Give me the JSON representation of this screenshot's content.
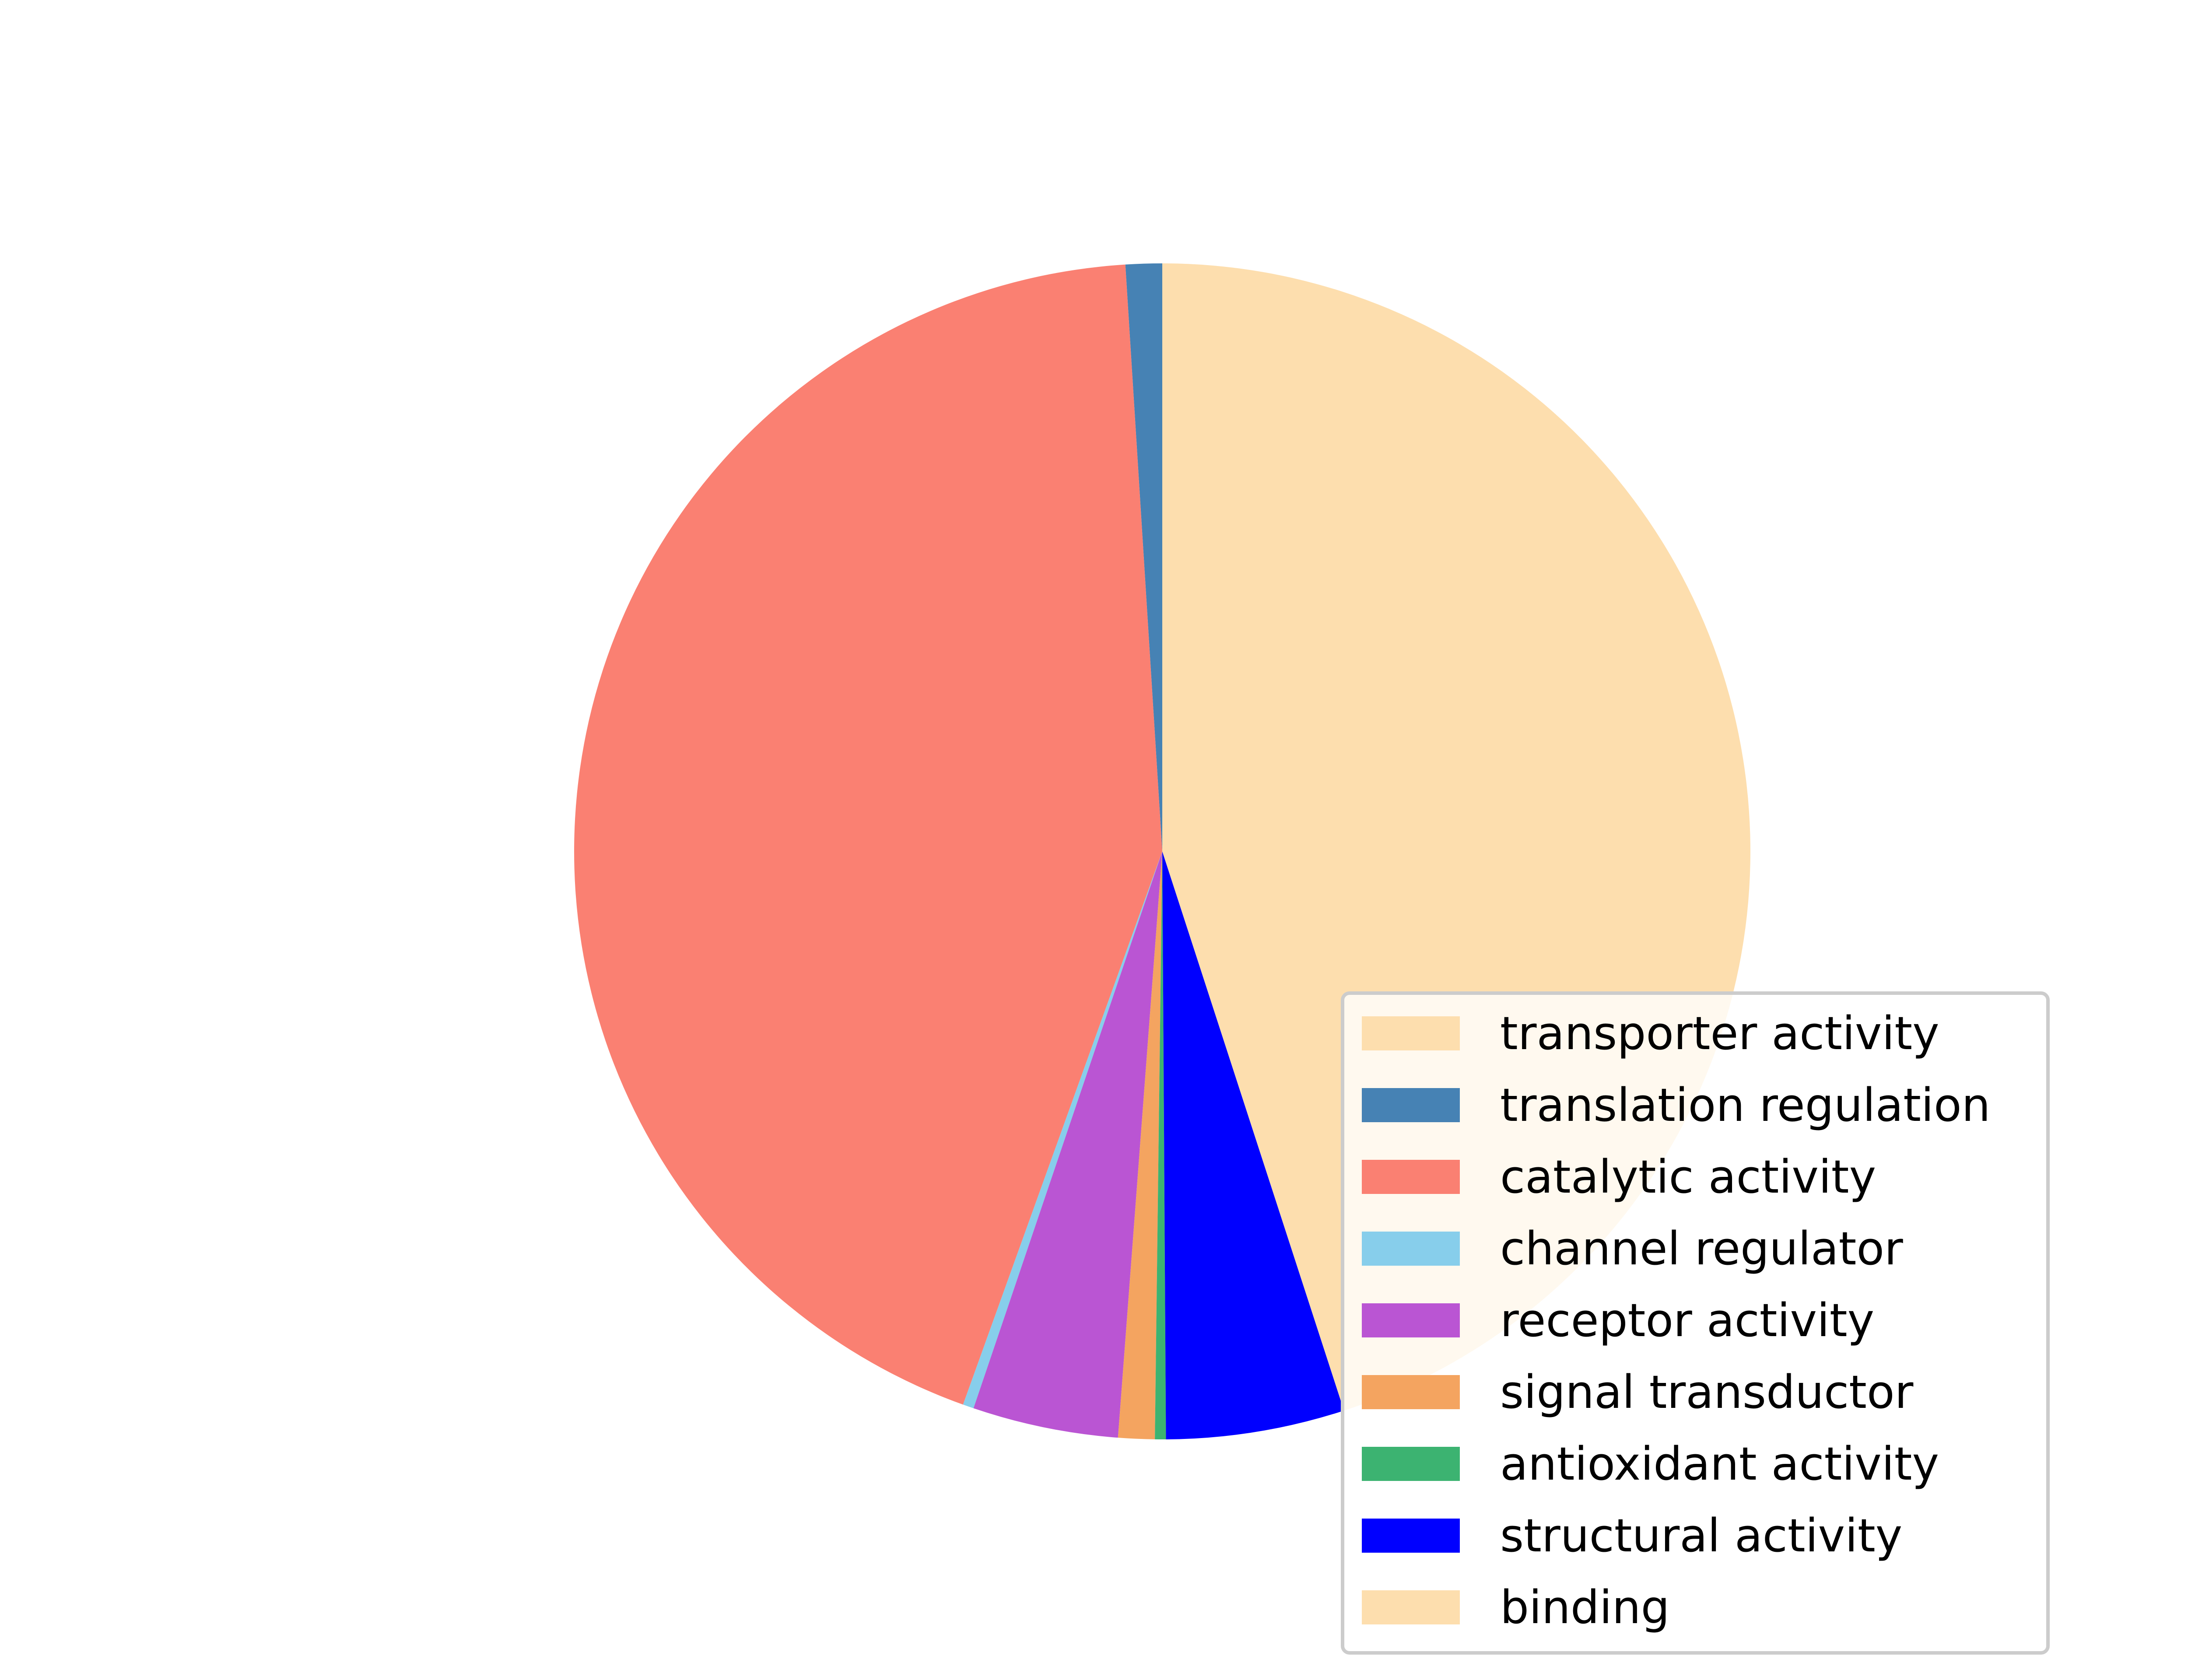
{
  "chart_data": {
    "type": "pie",
    "title": "",
    "legend_position": "lower-right",
    "slices": [
      {
        "label": "transporter activity",
        "value": 0.0,
        "color": "#FDDEAE"
      },
      {
        "label": "translation regulation",
        "value": 1.0,
        "color": "#4682B4"
      },
      {
        "label": "catalytic activity",
        "value": 43.5,
        "color": "#FA8072"
      },
      {
        "label": "channel regulator",
        "value": 0.3,
        "color": "#87CEEB"
      },
      {
        "label": "receptor activity",
        "value": 4.0,
        "color": "#BA55D3"
      },
      {
        "label": "signal transductor",
        "value": 1.0,
        "color": "#F4A460"
      },
      {
        "label": "antioxidant activity",
        "value": 0.3,
        "color": "#3CB371"
      },
      {
        "label": "structural activity",
        "value": 4.9,
        "color": "#0000FF"
      },
      {
        "label": "binding",
        "value": 45.0,
        "color": "#FDDEAE"
      }
    ]
  }
}
